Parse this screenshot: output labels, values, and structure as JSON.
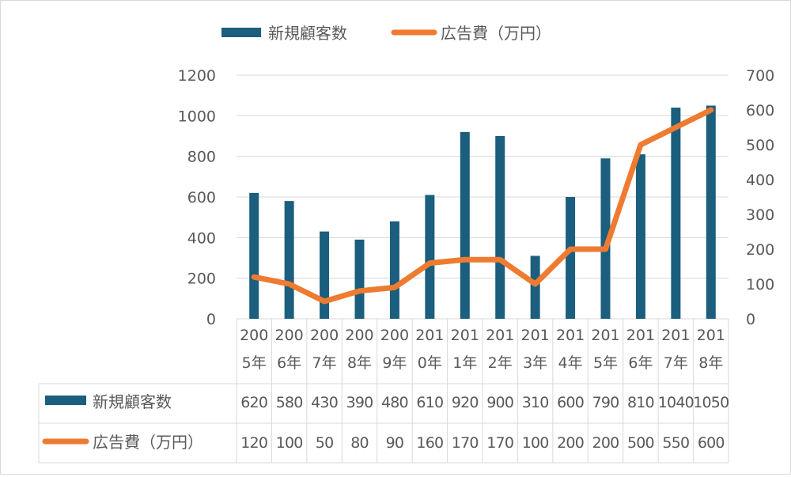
{
  "chart_data": {
    "type": "bar",
    "categories": [
      [
        "200",
        "5年"
      ],
      [
        "200",
        "6年"
      ],
      [
        "200",
        "7年"
      ],
      [
        "200",
        "8年"
      ],
      [
        "200",
        "9年"
      ],
      [
        "201",
        "0年"
      ],
      [
        "201",
        "1年"
      ],
      [
        "201",
        "2年"
      ],
      [
        "201",
        "3年"
      ],
      [
        "201",
        "4年"
      ],
      [
        "201",
        "5年"
      ],
      [
        "201",
        "6年"
      ],
      [
        "201",
        "7年"
      ],
      [
        "201",
        "8年"
      ]
    ],
    "series": [
      {
        "name": "新規顧客数",
        "type": "bar",
        "axis": "left",
        "color": "#1b5e7e",
        "values": [
          620,
          580,
          430,
          390,
          480,
          610,
          920,
          900,
          310,
          600,
          790,
          810,
          1040,
          1050
        ]
      },
      {
        "name": "広告費（万円）",
        "type": "line",
        "axis": "right",
        "color": "#ee7b30",
        "values": [
          120,
          100,
          50,
          80,
          90,
          160,
          170,
          170,
          100,
          200,
          200,
          500,
          550,
          600
        ]
      }
    ],
    "y_left": {
      "min": 0,
      "max": 1200,
      "step": 200,
      "ticks": [
        "0",
        "200",
        "400",
        "600",
        "800",
        "1000",
        "1200"
      ]
    },
    "y_right": {
      "min": 0,
      "max": 700,
      "step": 100,
      "ticks": [
        "0",
        "100",
        "200",
        "300",
        "400",
        "500",
        "600",
        "700"
      ]
    },
    "legend_position": "top",
    "grid": true,
    "data_table": true,
    "table_rows": [
      [
        "620",
        "580",
        "430",
        "390",
        "480",
        "610",
        "920",
        "900",
        "310",
        "600",
        "790",
        "810",
        "1040",
        "1050"
      ],
      [
        "120",
        "100",
        "50",
        "80",
        "90",
        "160",
        "170",
        "170",
        "100",
        "200",
        "200",
        "500",
        "550",
        "600"
      ]
    ],
    "title": "",
    "xlabel": "",
    "ylabel": ""
  }
}
